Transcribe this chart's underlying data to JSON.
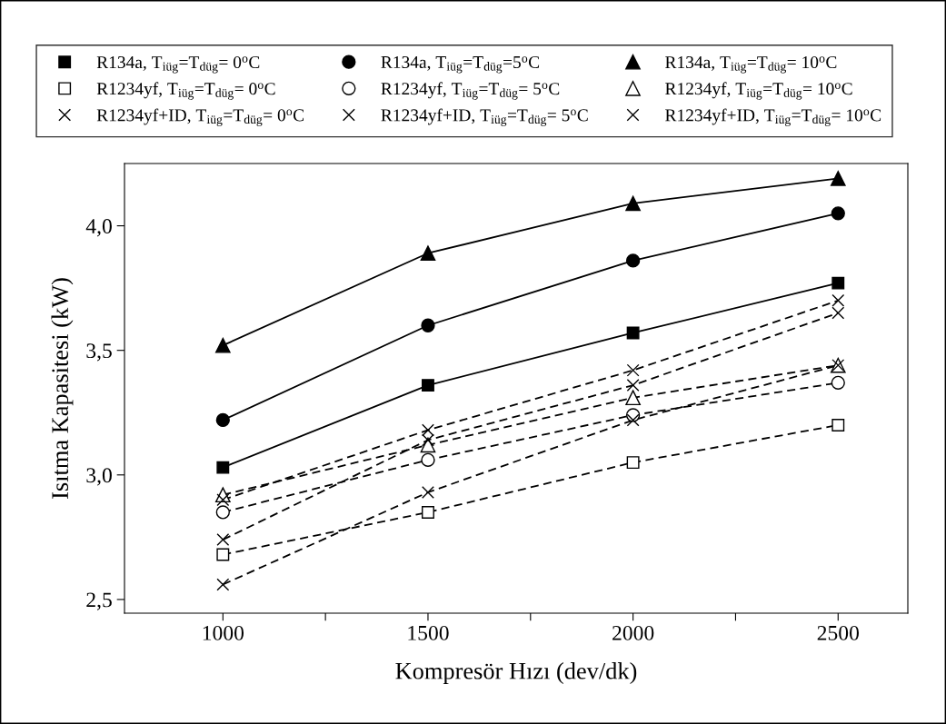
{
  "chart_data": {
    "type": "line",
    "xlabel": "Kompresör Hızı (dev/dk)",
    "ylabel": "Isıtma Kapasitesi (kW)",
    "x": [
      1000,
      1500,
      2000,
      2500
    ],
    "xlim": [
      760,
      2670
    ],
    "xticks": [
      1000,
      {
        "value": 1250,
        "label": null
      },
      1500,
      {
        "value": 1750,
        "label": null
      },
      2000,
      {
        "value": 2250,
        "label": null
      },
      2500
    ],
    "ylim": [
      2.445,
      4.25
    ],
    "yticks": [
      {
        "value": 2.5,
        "label": "2,5"
      },
      {
        "value": 3.0,
        "label": "3,0"
      },
      {
        "value": 3.5,
        "label": "3,5"
      },
      {
        "value": 4.0,
        "label": "4,0"
      }
    ],
    "grid": false,
    "legend": "top",
    "series": [
      {
        "name": "R134a, T$_{iüg}$=T$_{düg}$= 0$^{o}$C",
        "color": "#000000",
        "marker": "square",
        "line_style": "solid",
        "values": [
          3.03,
          3.36,
          3.57,
          3.77
        ]
      },
      {
        "name": "R134a, T$_{iüg}$=T$_{düg}$=5$^{o}$C",
        "color": "#000000",
        "marker": "circle",
        "line_style": "solid",
        "values": [
          3.22,
          3.6,
          3.86,
          4.05
        ]
      },
      {
        "name": "R134a, T$_{iüg}$=T$_{düg}$= 10$^{o}$C",
        "color": "#000000",
        "marker": "triangle",
        "line_style": "solid",
        "values": [
          3.52,
          3.89,
          4.09,
          4.19
        ]
      },
      {
        "name": "R1234yf, T$_{iüg}$=T$_{düg}$= 0$^{o}$C",
        "color": "#000000",
        "marker": "square",
        "line_style": "dashed",
        "values": [
          2.68,
          2.85,
          3.05,
          3.2
        ]
      },
      {
        "name": "R1234yf, T$_{iüg}$=T$_{düg}$= 5$^{o}$C",
        "color": "#000000",
        "marker": "circle",
        "line_style": "dashed",
        "values": [
          2.85,
          3.06,
          3.24,
          3.37
        ]
      },
      {
        "name": "R1234yf, T$_{iüg}$=T$_{düg}$= 10$^{o}$C",
        "color": "#000000",
        "marker": "triangle",
        "line_style": "dashed",
        "values": [
          2.92,
          3.12,
          3.31,
          3.44
        ]
      },
      {
        "name": "R1234yf+ID, T$_{iüg}$=T$_{düg}$= 0$^{o}$C",
        "color": "#000000",
        "marker": "cross",
        "line_style": "dashed",
        "values": [
          2.56,
          2.93,
          3.22,
          3.44
        ]
      },
      {
        "name": "R1234yf+ID, T$_{iüg}$=T$_{düg}$= 5$^{o}$C",
        "color": "#000000",
        "marker": "cross",
        "line_style": "dashed",
        "values": [
          2.74,
          3.14,
          3.36,
          3.65
        ]
      },
      {
        "name": "R1234yf+ID, T$_{iüg}$=T$_{düg}$= 10$^{o}$C",
        "color": "#000000",
        "marker": "cross",
        "line_style": "dashed",
        "values": [
          2.9,
          3.18,
          3.42,
          3.7
        ]
      }
    ]
  }
}
